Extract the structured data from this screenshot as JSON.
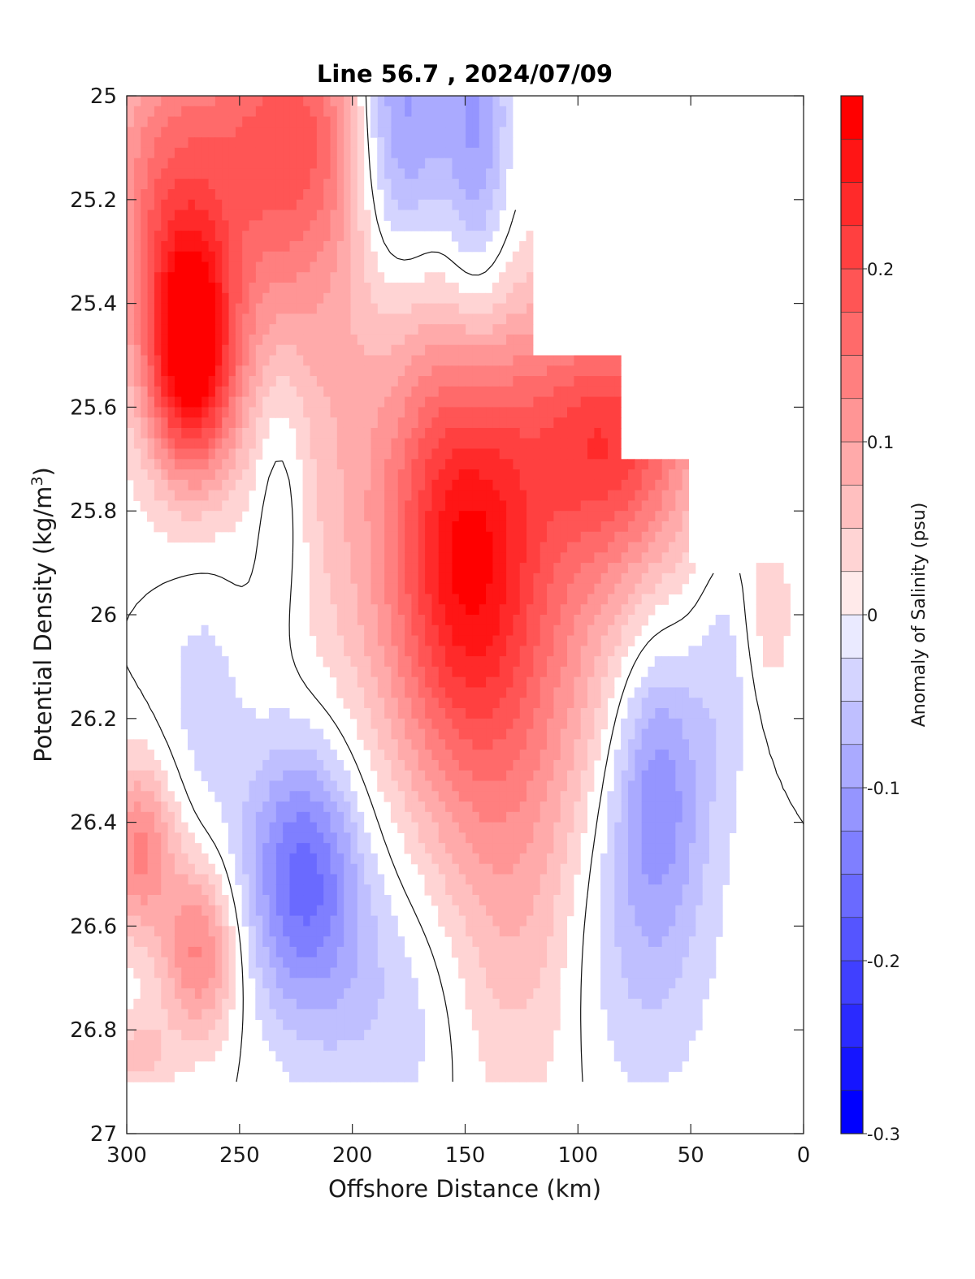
{
  "chart_data": {
    "type": "heatmap",
    "title": "Line 56.7 , 2024/07/09",
    "xlabel": "Offshore Distance (km)",
    "ylabel_main": "Potential Density (kg/m",
    "ylabel_sup": "3",
    "ylabel_close": ")",
    "colorbar_label": "Anomaly of Salinity (psu)",
    "xlim": [
      300,
      0
    ],
    "ylim": [
      25,
      27
    ],
    "x_reversed": true,
    "y_reversed": true,
    "x_ticks": [
      {
        "value": 300,
        "label": "300"
      },
      {
        "value": 250,
        "label": "250"
      },
      {
        "value": 200,
        "label": "200"
      },
      {
        "value": 150,
        "label": "150"
      },
      {
        "value": 100,
        "label": "100"
      },
      {
        "value": 50,
        "label": "50"
      },
      {
        "value": 0,
        "label": "0"
      }
    ],
    "y_ticks": [
      {
        "value": 25,
        "label": "25"
      },
      {
        "value": 25.2,
        "label": "25.2"
      },
      {
        "value": 25.4,
        "label": "25.4"
      },
      {
        "value": 25.6,
        "label": "25.6"
      },
      {
        "value": 25.8,
        "label": "25.8"
      },
      {
        "value": 26,
        "label": "26"
      },
      {
        "value": 26.2,
        "label": "26.2"
      },
      {
        "value": 26.4,
        "label": "26.4"
      },
      {
        "value": 26.6,
        "label": "26.6"
      },
      {
        "value": 26.8,
        "label": "26.8"
      },
      {
        "value": 27,
        "label": "27"
      }
    ],
    "colorbar": {
      "range": [
        -0.3,
        0.3
      ],
      "step": 0.025,
      "ticks": [
        {
          "value": 0.2,
          "label": "0.2"
        },
        {
          "value": 0.1,
          "label": "0.1"
        },
        {
          "value": 0,
          "label": "0"
        },
        {
          "value": -0.1,
          "label": "-0.1"
        },
        {
          "value": -0.2,
          "label": "-0.2"
        },
        {
          "value": -0.3,
          "label": "-0.3"
        }
      ],
      "negative_color": "#0000ff",
      "positive_color": "#ff0000",
      "zero_color": "#ffffff"
    },
    "grid": false,
    "zero_contour": true,
    "data_extent": {
      "x": [
        0,
        300
      ],
      "y": [
        25,
        26.9
      ]
    },
    "anomaly_features": [
      {
        "x": 272,
        "y": 25.5,
        "amplitude": 0.26,
        "sx": 13,
        "sy": 0.16
      },
      {
        "x": 285,
        "y": 25.2,
        "amplitude": 0.12,
        "sx": 20,
        "sy": 0.25
      },
      {
        "x": 222,
        "y": 25.05,
        "amplitude": 0.14,
        "sx": 30,
        "sy": 0.2
      },
      {
        "x": 245,
        "y": 25.3,
        "amplitude": 0.08,
        "sx": 30,
        "sy": 0.3
      },
      {
        "x": 180,
        "y": 25.05,
        "amplitude": -0.17,
        "sx": 16,
        "sy": 0.22
      },
      {
        "x": 145,
        "y": 25.1,
        "amplitude": -0.11,
        "sx": 11,
        "sy": 0.25
      },
      {
        "x": 232,
        "y": 25.75,
        "amplitude": -0.06,
        "sx": 9,
        "sy": 0.2
      },
      {
        "x": 150,
        "y": 25.88,
        "amplitude": 0.17,
        "sx": 22,
        "sy": 0.28
      },
      {
        "x": 85,
        "y": 25.65,
        "amplitude": 0.19,
        "sx": 28,
        "sy": 0.18
      },
      {
        "x": 120,
        "y": 26.05,
        "amplitude": 0.09,
        "sx": 40,
        "sy": 0.3
      },
      {
        "x": 175,
        "y": 25.7,
        "amplitude": 0.07,
        "sx": 40,
        "sy": 0.4
      },
      {
        "x": 265,
        "y": 26.15,
        "amplitude": -0.04,
        "sx": 15,
        "sy": 0.2
      },
      {
        "x": 222,
        "y": 26.5,
        "amplitude": -0.16,
        "sx": 18,
        "sy": 0.18
      },
      {
        "x": 180,
        "y": 26.75,
        "amplitude": -0.05,
        "sx": 30,
        "sy": 0.2
      },
      {
        "x": 65,
        "y": 26.3,
        "amplitude": -0.11,
        "sx": 15,
        "sy": 0.2
      },
      {
        "x": 75,
        "y": 26.6,
        "amplitude": -0.06,
        "sx": 25,
        "sy": 0.25
      },
      {
        "x": 35,
        "y": 26.1,
        "amplitude": -0.04,
        "sx": 10,
        "sy": 0.2
      },
      {
        "x": 295,
        "y": 26.45,
        "amplitude": 0.13,
        "sx": 12,
        "sy": 0.12
      },
      {
        "x": 268,
        "y": 26.65,
        "amplitude": 0.13,
        "sx": 12,
        "sy": 0.12
      },
      {
        "x": 130,
        "y": 26.6,
        "amplitude": 0.07,
        "sx": 25,
        "sy": 0.3
      },
      {
        "x": 15,
        "y": 26.0,
        "amplitude": 0.04,
        "sx": 8,
        "sy": 0.12
      },
      {
        "x": 295,
        "y": 26.85,
        "amplitude": 0.06,
        "sx": 10,
        "sy": 0.06
      }
    ],
    "missing_regions": [
      {
        "x_max": 130,
        "y_max": 25.2
      },
      {
        "x_max": 120,
        "y_max": 25.5
      },
      {
        "x_max": 80,
        "y_max": 25.7
      },
      {
        "x_max": 50,
        "y_max": 25.9
      }
    ]
  }
}
